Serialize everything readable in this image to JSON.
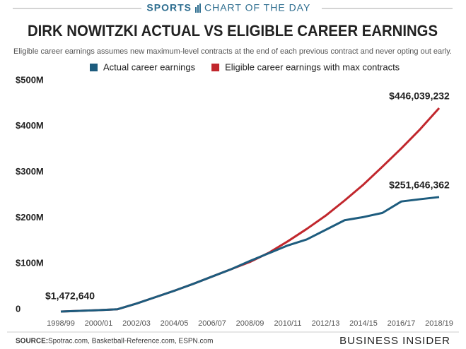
{
  "chart_data": {
    "type": "line",
    "header_left": "SPORTS",
    "header_right": "CHART OF THE DAY",
    "title": "DIRK NOWITZKI ACTUAL VS ELIGIBLE CAREER EARNINGS",
    "subtitle": "Eligible career earnings assumes new maximum-level contracts at the end of each previous contract and never opting out early.",
    "categories": [
      "1998/99",
      null,
      "2000/01",
      null,
      "2002/03",
      null,
      "2004/05",
      null,
      "2006/07",
      null,
      "2008/09",
      null,
      "2010/11",
      null,
      "2012/13",
      null,
      "2014/15",
      null,
      "2016/17",
      null,
      "2018/19"
    ],
    "series": [
      {
        "name": "Actual career earnings",
        "color": "#1d5c7e",
        "values": [
          1472640,
          3050000,
          4700000,
          6600000,
          19000000,
          33000000,
          47000000,
          62000000,
          78000000,
          94000000,
          112000000,
          129000000,
          146000000,
          159000000,
          180000000,
          201000000,
          208000000,
          217000000,
          242000000,
          247000000,
          251646362
        ],
        "value_labels": [
          "$1,472,640",
          null,
          null,
          null,
          null,
          null,
          null,
          null,
          null,
          null,
          null,
          null,
          null,
          null,
          null,
          null,
          null,
          null,
          null,
          null,
          "$251,646,362"
        ]
      },
      {
        "name": "Eligible career earnings with max contracts",
        "color": "#c1272d",
        "values": [
          1472640,
          3050000,
          4700000,
          6600000,
          19000000,
          33000000,
          47000000,
          62000000,
          78000000,
          94000000,
          110000000,
          130000000,
          155000000,
          182000000,
          211000000,
          244000000,
          279000000,
          318000000,
          358000000,
          400000000,
          446039232
        ],
        "value_labels": [
          null,
          null,
          null,
          null,
          null,
          null,
          null,
          null,
          null,
          null,
          null,
          null,
          null,
          null,
          null,
          null,
          null,
          null,
          null,
          null,
          "$446,039,232"
        ]
      }
    ],
    "ylim": [
      0,
      500000000
    ],
    "yticks": [
      {
        "value": 0,
        "label": "0"
      },
      {
        "value": 100000000,
        "label": "$100M"
      },
      {
        "value": 200000000,
        "label": "$200M"
      },
      {
        "value": 300000000,
        "label": "$300M"
      },
      {
        "value": 400000000,
        "label": "$400M"
      },
      {
        "value": 500000000,
        "label": "$500M"
      }
    ],
    "grid": false,
    "source_label": "SOURCE:",
    "source": "Spotrac.com, Basketball-Reference.com, ESPN.com",
    "brand": "BUSINESS INSIDER"
  }
}
